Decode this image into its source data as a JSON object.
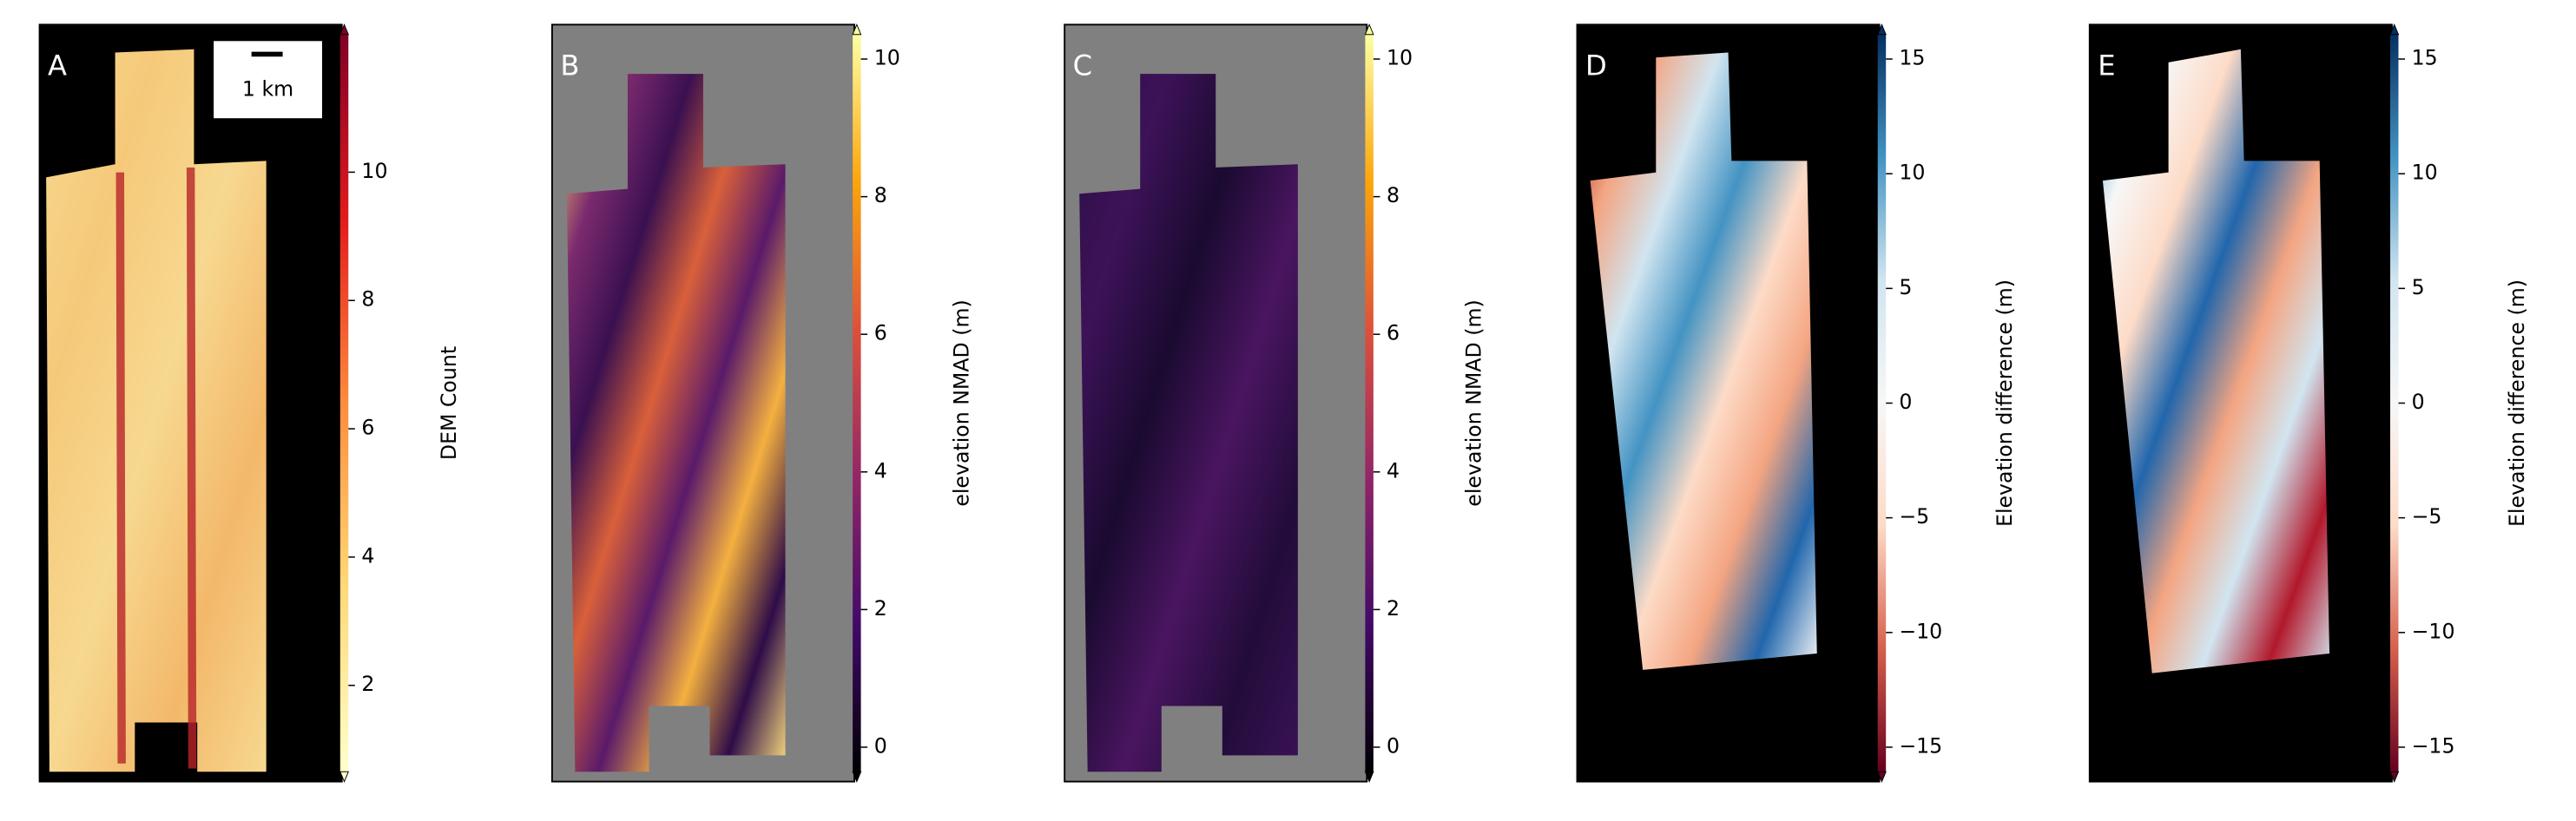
{
  "panels": [
    {
      "label": "A",
      "scale_bar": "1 km",
      "background": "#000000",
      "colorbar": {
        "label": "DEM Count",
        "lim": [
          0.5,
          12.3
        ],
        "ticks": [
          2,
          4,
          6,
          8,
          10
        ],
        "colors": [
          "#ffffcc",
          "#fed976",
          "#fd8d3c",
          "#e31a1c",
          "#800026"
        ]
      }
    },
    {
      "label": "B",
      "background": "#808080",
      "colorbar": {
        "label": "elevation NMAD (m)",
        "lim": [
          -0.5,
          10.5
        ],
        "ticks": [
          0,
          2,
          4,
          6,
          8,
          10
        ],
        "colors": [
          "#000004",
          "#420a68",
          "#932667",
          "#dd513a",
          "#fca50a",
          "#fcffa4"
        ]
      }
    },
    {
      "label": "C",
      "background": "#808080",
      "colorbar": {
        "label": "elevation NMAD (m)",
        "lim": [
          -0.5,
          10.5
        ],
        "ticks": [
          0,
          2,
          4,
          6,
          8,
          10
        ],
        "colors": [
          "#000004",
          "#420a68",
          "#932667",
          "#dd513a",
          "#fca50a",
          "#fcffa4"
        ]
      }
    },
    {
      "label": "D",
      "background": "#000000",
      "colorbar": {
        "label": "Elevation difference (m)",
        "lim": [
          -16.5,
          16.5
        ],
        "ticks": [
          {
            "value": -15,
            "label": "−15"
          },
          {
            "value": -10,
            "label": "−10"
          },
          {
            "value": -5,
            "label": "−5"
          },
          0,
          5,
          10,
          15
        ],
        "colors": [
          "#67001f",
          "#d6604d",
          "#fddbc7",
          "#f7f7f7",
          "#d1e5f0",
          "#4393c3",
          "#053061"
        ]
      }
    },
    {
      "label": "E",
      "background": "#000000",
      "colorbar": {
        "label": "Elevation difference (m)",
        "lim": [
          -16.5,
          16.5
        ],
        "ticks": [
          {
            "value": -15,
            "label": "−15"
          },
          {
            "value": -10,
            "label": "−10"
          },
          {
            "value": -5,
            "label": "−5"
          },
          0,
          5,
          10,
          15
        ],
        "colors": [
          "#67001f",
          "#d6604d",
          "#fddbc7",
          "#f7f7f7",
          "#d1e5f0",
          "#4393c3",
          "#053061"
        ]
      }
    }
  ]
}
